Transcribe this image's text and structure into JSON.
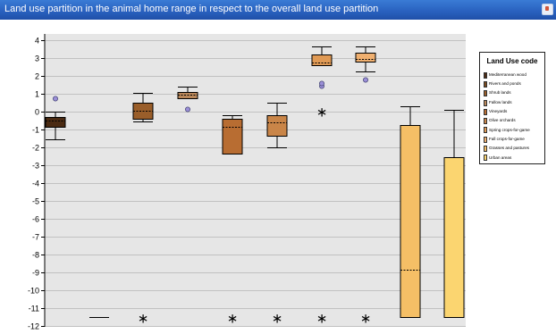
{
  "window": {
    "title": "Land use partition in the animal home range in respect to the overall land use partition"
  },
  "colors": {
    "titlebar": "#2a62c0",
    "plot_background": "#e6e6e6",
    "gridline": "#b4b4b4"
  },
  "chart_data": {
    "type": "box",
    "title": "",
    "xlabel": "",
    "ylabel": "",
    "ylim": [
      -12,
      4
    ],
    "y_ticks": [
      "4",
      "3",
      "2",
      "1",
      "0",
      "-1",
      "-2",
      "-3",
      "-4",
      "-5",
      "-6",
      "-7",
      "-8",
      "-9",
      "-10",
      "-11",
      "-12"
    ],
    "grid": true,
    "legend_position": "right",
    "legend_title": "Land Use code",
    "series": [
      {
        "name": "Mediterranean wood",
        "color": "#4a2a12",
        "q1": -0.85,
        "median": -0.5,
        "q3": -0.3,
        "whisker_low": -1.55,
        "whisker_high": 0.0,
        "mild_outliers": [
          0.75
        ],
        "extremes": []
      },
      {
        "name": "Rivers and ponds",
        "color": "#7a4a1e",
        "q1": -11.5,
        "median": -11.5,
        "q3": -11.5,
        "whisker_low": -11.5,
        "whisker_high": -11.5,
        "mild_outliers": [],
        "extremes": []
      },
      {
        "name": "Shrub lands",
        "color": "#9a5e2a",
        "q1": -0.4,
        "median": 0.05,
        "q3": 0.5,
        "whisker_low": -0.55,
        "whisker_high": 1.05,
        "mild_outliers": [],
        "extremes": [
          -11.5
        ]
      },
      {
        "name": "Fallow lands",
        "color": "#b9875a",
        "q1": 0.75,
        "median": 0.95,
        "q3": 1.1,
        "whisker_low": 0.75,
        "whisker_high": 1.4,
        "mild_outliers": [
          0.15
        ],
        "extremes": []
      },
      {
        "name": "Vineyards",
        "color": "#b86d32",
        "q1": -2.35,
        "median": -0.85,
        "q3": -0.4,
        "whisker_low": -2.35,
        "whisker_high": -0.2,
        "mild_outliers": [],
        "extremes": [
          -11.5
        ]
      },
      {
        "name": "Olive orchards",
        "color": "#c98548",
        "q1": -1.35,
        "median": -0.6,
        "q3": -0.2,
        "whisker_low": -2.0,
        "whisker_high": 0.5,
        "mild_outliers": [],
        "extremes": [
          -11.5
        ]
      },
      {
        "name": "Spring crops-for-game",
        "color": "#e09a55",
        "q1": 2.6,
        "median": 2.75,
        "q3": 3.2,
        "whisker_low": 2.6,
        "whisker_high": 3.65,
        "mild_outliers": [
          1.45,
          1.6
        ],
        "extremes": [
          0.05,
          -11.5
        ]
      },
      {
        "name": "Fall crops-for-game",
        "color": "#f0b070",
        "q1": 2.8,
        "median": 2.95,
        "q3": 3.3,
        "whisker_low": 2.25,
        "whisker_high": 3.65,
        "mild_outliers": [
          1.8
        ],
        "extremes": [
          -11.5
        ]
      },
      {
        "name": "Grasses and pastures",
        "color": "#f5bf66",
        "q1": -11.5,
        "median": -8.85,
        "q3": -0.75,
        "whisker_low": -11.5,
        "whisker_high": 0.3,
        "mild_outliers": [],
        "extremes": []
      },
      {
        "name": "Urban areas",
        "color": "#fbd570",
        "q1": -11.5,
        "median": -11.5,
        "q3": -2.55,
        "whisker_low": -11.5,
        "whisker_high": 0.1,
        "mild_outliers": [],
        "extremes": []
      }
    ]
  }
}
